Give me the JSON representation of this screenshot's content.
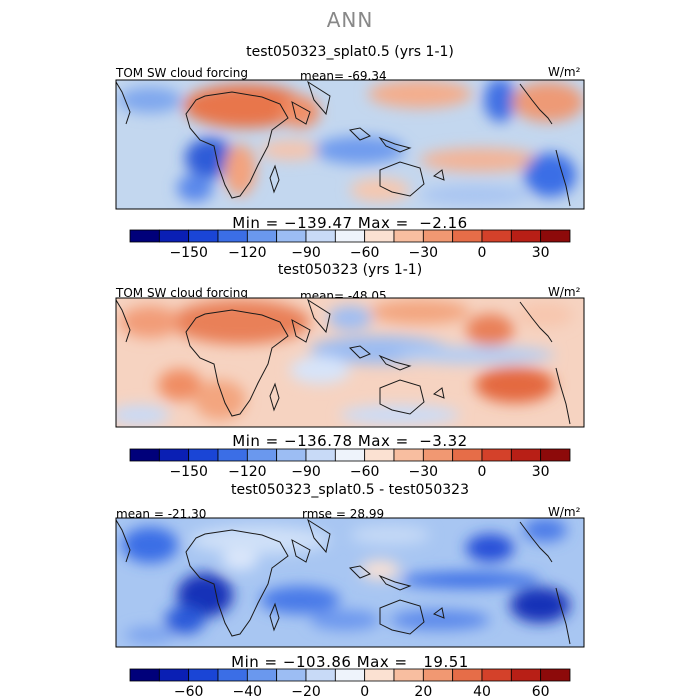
{
  "main_title": "ANN",
  "panels": [
    {
      "title": "test050323_splat0.5 (yrs 1-1)",
      "left_label": "TOM SW cloud forcing",
      "center_label": "mean= -69.34",
      "units": "W/m²",
      "minmax": "Min = −139.47 Max =  −2.16"
    },
    {
      "title": "test050323 (yrs 1-1)",
      "left_label": "TOM SW cloud forcing",
      "center_label": "mean= -48.05",
      "units": "W/m²",
      "minmax": "Min = −136.78 Max =  −3.32"
    },
    {
      "title": "test050323_splat0.5 - test050323",
      "left_label": "mean = -21.30",
      "center_label": "rmse =  28.99",
      "units": "W/m²",
      "minmax": "Min = −103.86 Max =   19.51"
    }
  ],
  "colorbars": [
    {
      "colors": [
        "#00007a",
        "#0a1fb4",
        "#1a45d6",
        "#3b6ee6",
        "#6a98ee",
        "#9cbdf3",
        "#c8daf7",
        "#eef3fb",
        "#fbe1d2",
        "#f8bea0",
        "#f19872",
        "#e66d48",
        "#d4412a",
        "#b81f16",
        "#8d0a0a"
      ],
      "ticks": [
        {
          "label": "−150",
          "index": 2
        },
        {
          "label": "−120",
          "index": 4
        },
        {
          "label": "−90",
          "index": 6
        },
        {
          "label": "−60",
          "index": 8
        },
        {
          "label": "−30",
          "index": 10
        },
        {
          "label": "0",
          "index": 12
        },
        {
          "label": "30",
          "index": 14
        }
      ]
    },
    {
      "colors": [
        "#00007a",
        "#0a1fb4",
        "#1a45d6",
        "#3b6ee6",
        "#6a98ee",
        "#9cbdf3",
        "#c8daf7",
        "#eef3fb",
        "#fbe1d2",
        "#f8bea0",
        "#f19872",
        "#e66d48",
        "#d4412a",
        "#b81f16",
        "#8d0a0a"
      ],
      "ticks": [
        {
          "label": "−150",
          "index": 2
        },
        {
          "label": "−120",
          "index": 4
        },
        {
          "label": "−90",
          "index": 6
        },
        {
          "label": "−60",
          "index": 8
        },
        {
          "label": "−30",
          "index": 10
        },
        {
          "label": "0",
          "index": 12
        },
        {
          "label": "30",
          "index": 14
        }
      ]
    },
    {
      "colors": [
        "#00007a",
        "#0a1fb4",
        "#1a45d6",
        "#3b6ee6",
        "#6a98ee",
        "#9cbdf3",
        "#c8daf7",
        "#eef3fb",
        "#fbe1d2",
        "#f8bea0",
        "#f19872",
        "#e66d48",
        "#d4412a",
        "#b81f16",
        "#8d0a0a"
      ],
      "ticks": [
        {
          "label": "−60",
          "index": 2
        },
        {
          "label": "−40",
          "index": 4
        },
        {
          "label": "−20",
          "index": 6
        },
        {
          "label": "0",
          "index": 8
        },
        {
          "label": "20",
          "index": 10
        },
        {
          "label": "40",
          "index": 12
        },
        {
          "label": "60",
          "index": 14
        }
      ]
    }
  ],
  "chart_data": [
    {
      "type": "heatmap",
      "title": "test050323_splat0.5 (yrs 1-1)",
      "variable": "TOM SW cloud forcing",
      "units": "W/m^2",
      "mean": -69.34,
      "min": -139.47,
      "max": -2.16,
      "colorbar_ticks": [
        -150,
        -120,
        -90,
        -60,
        -30,
        0,
        30
      ]
    },
    {
      "type": "heatmap",
      "title": "test050323 (yrs 1-1)",
      "variable": "TOM SW cloud forcing",
      "units": "W/m^2",
      "mean": -48.05,
      "min": -136.78,
      "max": -3.32,
      "colorbar_ticks": [
        -150,
        -120,
        -90,
        -60,
        -30,
        0,
        30
      ]
    },
    {
      "type": "heatmap",
      "title": "test050323_splat0.5 - test050323",
      "units": "W/m^2",
      "mean": -21.3,
      "rmse": 28.99,
      "min": -103.86,
      "max": 19.51,
      "colorbar_ticks": [
        -60,
        -40,
        -20,
        0,
        20,
        40,
        60
      ]
    }
  ]
}
